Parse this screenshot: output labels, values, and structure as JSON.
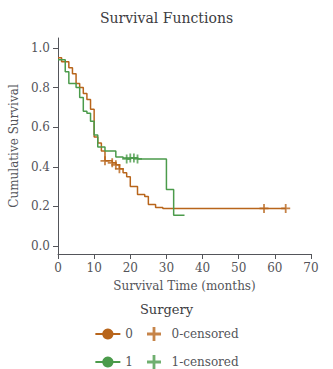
{
  "chart_data": {
    "type": "step",
    "title": "Survival Functions",
    "xlabel": "Survival Time (months)",
    "ylabel": "Cumulative Survival",
    "legend_title": "Surgery",
    "xlim": [
      0,
      70
    ],
    "ylim": [
      -0.04,
      1.05
    ],
    "xticks": [
      0,
      10,
      20,
      30,
      40,
      50,
      60,
      70
    ],
    "yticks": [
      {
        "value": 0,
        "label": "0.0"
      },
      0.2,
      0.4,
      0.6,
      0.8,
      {
        "value": 1,
        "label": "1.0"
      }
    ],
    "grid": false,
    "series": [
      {
        "name": "0",
        "type": "step",
        "color": "#B8651B",
        "x": [
          0,
          1,
          3,
          4,
          5,
          6,
          7,
          8,
          9,
          10,
          11,
          12,
          13,
          15,
          16,
          17,
          18,
          19,
          20,
          22,
          24,
          25,
          27,
          29,
          30,
          63
        ],
        "values": [
          0.95,
          0.93,
          0.9,
          0.87,
          0.82,
          0.8,
          0.77,
          0.74,
          0.69,
          0.55,
          0.52,
          0.48,
          0.43,
          0.42,
          0.41,
          0.39,
          0.37,
          0.35,
          0.3,
          0.26,
          0.25,
          0.21,
          0.195,
          0.19,
          0.19,
          0.19
        ]
      },
      {
        "name": "0-censored",
        "type": "scatter",
        "marker": "+",
        "color": "#B8651B",
        "x": [
          13,
          15,
          16,
          17,
          57,
          63
        ],
        "values": [
          0.43,
          0.42,
          0.41,
          0.39,
          0.19,
          0.19
        ]
      },
      {
        "name": "1",
        "type": "step",
        "color": "#4B9B4B",
        "x": [
          0,
          2,
          3,
          5,
          6,
          7,
          8,
          9,
          10,
          11,
          13,
          16,
          18,
          19,
          20,
          21,
          22,
          23,
          30,
          32,
          35
        ],
        "values": [
          0.94,
          0.88,
          0.82,
          0.8,
          0.75,
          0.68,
          0.67,
          0.63,
          0.56,
          0.5,
          0.48,
          0.45,
          0.445,
          0.44,
          0.445,
          0.445,
          0.44,
          0.44,
          0.285,
          0.155,
          0.155
        ]
      },
      {
        "name": "1-censored",
        "type": "scatter",
        "marker": "+",
        "color": "#4B9B4B",
        "x": [
          19,
          20,
          21,
          22
        ],
        "values": [
          0.44,
          0.445,
          0.445,
          0.44
        ]
      }
    ]
  }
}
